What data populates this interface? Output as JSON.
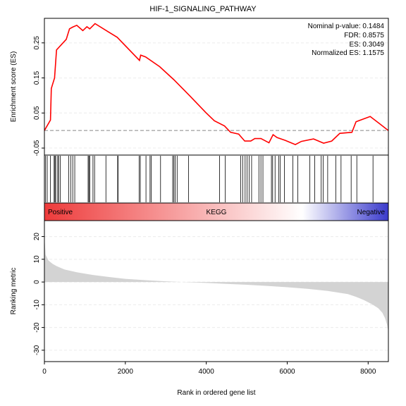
{
  "chart_data": [
    {
      "type": "line",
      "panel": "enrichment",
      "title": "HIF-1_SIGNALING_PATHWAY",
      "ylabel": "Enrichment score (ES)",
      "xlim": [
        0,
        8500
      ],
      "ylim": [
        -0.07,
        0.32
      ],
      "y_ticks": [
        -0.05,
        0.05,
        0.15,
        0.25
      ],
      "y_tick_labels": [
        "-0.05",
        "0.05",
        "0.15",
        "0.25"
      ],
      "grid": true,
      "baseline": 0,
      "line_color": "#ff0000",
      "stats": [
        "Nominal p-value: 0.1484",
        "FDR: 0.8575",
        "ES: 0.3049",
        "Normalized ES: 1.1575"
      ],
      "x": [
        0,
        150,
        170,
        250,
        300,
        500,
        540,
        620,
        700,
        800,
        950,
        1050,
        1120,
        1250,
        1600,
        1800,
        2350,
        2380,
        2500,
        2850,
        3200,
        3600,
        4000,
        4200,
        4450,
        4600,
        4800,
        4950,
        5100,
        5200,
        5350,
        5550,
        5650,
        5750,
        5950,
        6200,
        6350,
        6650,
        6900,
        7100,
        7300,
        7600,
        7700,
        8050,
        8300,
        8500
      ],
      "y": [
        0.0,
        0.03,
        0.12,
        0.15,
        0.23,
        0.255,
        0.26,
        0.29,
        0.295,
        0.3,
        0.285,
        0.296,
        0.29,
        0.3049,
        0.28,
        0.266,
        0.2,
        0.215,
        0.21,
        0.182,
        0.145,
        0.098,
        0.05,
        0.028,
        0.013,
        -0.005,
        -0.01,
        -0.03,
        -0.03,
        -0.023,
        -0.023,
        -0.035,
        -0.012,
        -0.02,
        -0.028,
        -0.04,
        -0.031,
        -0.024,
        -0.036,
        -0.03,
        -0.008,
        -0.005,
        0.025,
        0.04,
        0.018,
        0.0
      ]
    },
    {
      "type": "barcode",
      "panel": "gene-hits",
      "xlim": [
        0,
        8500
      ],
      "hits": [
        30,
        70,
        150,
        240,
        260,
        280,
        330,
        350,
        390,
        600,
        650,
        700,
        750,
        1080,
        1100,
        1120,
        1200,
        1240,
        1520,
        1810,
        1820,
        2340,
        2370,
        2510,
        2610,
        2640,
        2870,
        3170,
        3200,
        3230,
        3280,
        3560,
        4330,
        4470,
        4850,
        4900,
        4960,
        5010,
        5060,
        5120,
        5300,
        5350,
        5400,
        5610,
        5640,
        5700,
        5790,
        5830,
        5930,
        6140,
        6260,
        6560,
        6680,
        6840,
        6890,
        7000,
        7200,
        7330,
        7580,
        7720,
        8120
      ]
    },
    {
      "type": "heatmap",
      "panel": "ranking-gradient",
      "left_label": "Positive",
      "center_label": "KEGG",
      "right_label": "Negative",
      "colors": [
        "#ee3b3b",
        "#ffffff",
        "#3a3acc"
      ]
    },
    {
      "type": "area",
      "panel": "ranking-metric",
      "ylabel": "Ranking metric",
      "xlabel": "Rank in ordered gene list",
      "xlim": [
        0,
        8500
      ],
      "ylim": [
        -35,
        27
      ],
      "x_ticks": [
        0,
        2000,
        4000,
        6000,
        8000
      ],
      "x_tick_labels": [
        "0",
        "2000",
        "4000",
        "6000",
        "8000"
      ],
      "y_ticks": [
        20,
        10,
        0,
        -10,
        -20,
        -30
      ],
      "y_tick_labels": [
        "20",
        "10",
        "0",
        "-10",
        "-20",
        "-30"
      ],
      "grid": true,
      "fill_color": "#d3d3d3",
      "x": [
        0,
        30,
        100,
        200,
        300,
        500,
        800,
        1200,
        1600,
        2000,
        2500,
        3000,
        3250,
        3500,
        4000,
        4500,
        5000,
        5500,
        6000,
        6500,
        7000,
        7500,
        7700,
        7900,
        8100,
        8250,
        8350,
        8420,
        8470,
        8500
      ],
      "y": [
        20,
        12,
        9.5,
        8,
        7,
        5.5,
        4.3,
        3.1,
        2.2,
        1.4,
        0.8,
        0.3,
        0.1,
        -0.1,
        -0.4,
        -0.8,
        -1.2,
        -1.7,
        -2.3,
        -3.0,
        -3.9,
        -5.3,
        -6.5,
        -8.0,
        -9.8,
        -11.5,
        -13.5,
        -16,
        -19,
        -22
      ]
    }
  ]
}
